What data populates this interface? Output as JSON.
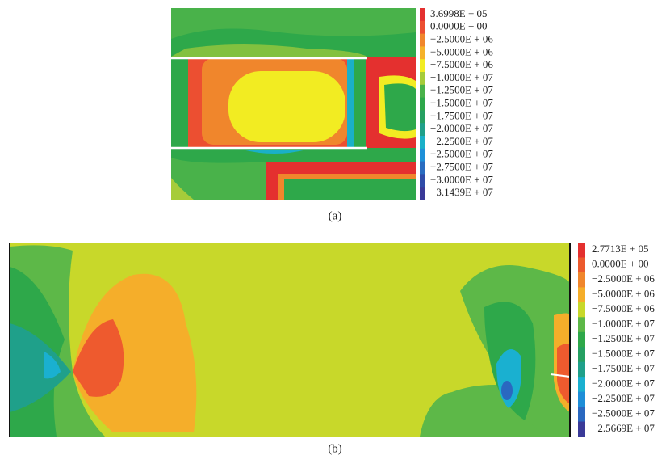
{
  "panels": [
    {
      "caption": "(a)",
      "legend": [
        {
          "label": "3.6998E + 05",
          "color": "#e4302f"
        },
        {
          "label": "0.0000E + 00",
          "color": "#ec4f31"
        },
        {
          "label": "−2.5000E + 06",
          "color": "#f0862c"
        },
        {
          "label": "−5.0000E + 06",
          "color": "#f5b22a"
        },
        {
          "label": "−7.5000E + 06",
          "color": "#f2ec22"
        },
        {
          "label": "−1.0000E + 07",
          "color": "#a6cc3a"
        },
        {
          "label": "−1.2500E + 07",
          "color": "#49b24a"
        },
        {
          "label": "−1.5000E + 07",
          "color": "#2ea84a"
        },
        {
          "label": "−1.7500E + 07",
          "color": "#25a062"
        },
        {
          "label": "−2.0000E + 07",
          "color": "#1fa08a"
        },
        {
          "label": "−2.2500E + 07",
          "color": "#1ab0c8"
        },
        {
          "label": "−2.5000E + 07",
          "color": "#1e90d8"
        },
        {
          "label": "−2.7500E + 07",
          "color": "#2a6cc0"
        },
        {
          "label": "−3.0000E + 07",
          "color": "#2f4ca8"
        },
        {
          "label": "−3.1439E + 07",
          "color": "#3a3a98"
        }
      ]
    },
    {
      "caption": "(b)",
      "legend": [
        {
          "label": "2.7713E + 05",
          "color": "#e4302f"
        },
        {
          "label": "0.0000E + 00",
          "color": "#ec5a2e"
        },
        {
          "label": "−2.5000E + 06",
          "color": "#f0862c"
        },
        {
          "label": "−5.0000E + 06",
          "color": "#f5ae2a"
        },
        {
          "label": "−7.5000E + 06",
          "color": "#c8d82a"
        },
        {
          "label": "−1.0000E + 07",
          "color": "#5db848"
        },
        {
          "label": "−1.2500E + 07",
          "color": "#2ea84a"
        },
        {
          "label": "−1.5000E + 07",
          "color": "#25a062"
        },
        {
          "label": "−1.7500E + 07",
          "color": "#1fa08a"
        },
        {
          "label": "−2.0000E + 07",
          "color": "#1ab0d0"
        },
        {
          "label": "−2.2500E + 07",
          "color": "#1e8ed8"
        },
        {
          "label": "−2.5000E + 07",
          "color": "#2a68c0"
        },
        {
          "label": "−2.5669E + 07",
          "color": "#3a3a98"
        }
      ]
    }
  ]
}
